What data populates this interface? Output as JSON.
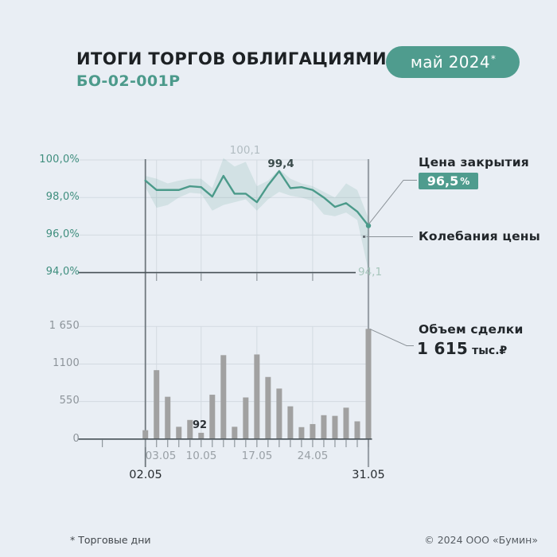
{
  "header": {
    "title": "ИТОГИ ТОРГОВ ОБЛИГАЦИЯМИ",
    "subtitle": "БО-02-001Р",
    "period_badge": "май 2024",
    "period_badge_footnote_mark": "*"
  },
  "colors": {
    "background": "#e9eef4",
    "accent_teal": "#4f9c8e",
    "price_line": "#4b9a8a",
    "band_fill": "rgba(79,156,141,0.15)",
    "bar_gray": "#a1a1a1",
    "dark_axis": "#465056",
    "grid_light": "#d3dae1"
  },
  "chart_data": [
    {
      "type": "line",
      "x": [
        "02.05",
        "03.05",
        "06.05",
        "07.05",
        "08.05",
        "10.05",
        "13.05",
        "14.05",
        "15.05",
        "16.05",
        "17.05",
        "20.05",
        "21.05",
        "22.05",
        "23.05",
        "24.05",
        "27.05",
        "28.05",
        "29.05",
        "30.05",
        "31.05"
      ],
      "series": [
        {
          "name": "Цена закрытия",
          "values": [
            98.9,
            98.4,
            98.4,
            98.4,
            98.6,
            98.55,
            98.05,
            99.15,
            98.2,
            98.2,
            97.75,
            98.65,
            99.4,
            98.5,
            98.55,
            98.4,
            98.0,
            97.5,
            97.7,
            97.25,
            96.5
          ]
        },
        {
          "name": "Колебания цены (максимум)",
          "values": [
            99.15,
            99.0,
            98.75,
            98.9,
            99.0,
            99.0,
            98.5,
            100.1,
            99.65,
            99.9,
            98.6,
            98.9,
            99.5,
            99.0,
            98.75,
            98.6,
            98.3,
            98.0,
            98.75,
            98.4,
            96.9
          ]
        },
        {
          "name": "Колебания цены (минимум)",
          "values": [
            98.55,
            97.45,
            97.6,
            98.0,
            98.25,
            98.2,
            97.3,
            97.6,
            97.75,
            97.9,
            97.3,
            97.9,
            98.3,
            98.1,
            98.0,
            97.8,
            97.1,
            97.0,
            97.2,
            96.8,
            94.1
          ]
        }
      ],
      "ylim": [
        94.0,
        100.0
      ],
      "y_tick_labels": [
        "100,0%",
        "98,0%",
        "96,0%",
        "94,0%"
      ],
      "x_tick_labels": [
        "03.05",
        "10.05",
        "17.05",
        "24.05"
      ],
      "annotations": {
        "band_max": "100,1",
        "line_peak": "99,4",
        "band_min": "94,1",
        "last_close": "96,5"
      }
    },
    {
      "type": "bar",
      "x": [
        "02.05",
        "03.05",
        "06.05",
        "07.05",
        "08.05",
        "10.05",
        "13.05",
        "14.05",
        "15.05",
        "16.05",
        "17.05",
        "20.05",
        "21.05",
        "22.05",
        "23.05",
        "24.05",
        "27.05",
        "28.05",
        "29.05",
        "30.05",
        "31.05"
      ],
      "values": [
        130,
        1010,
        620,
        180,
        280,
        92,
        650,
        1230,
        180,
        610,
        1240,
        910,
        740,
        480,
        175,
        220,
        350,
        340,
        460,
        260,
        1615
      ],
      "unit": "тыс.₽",
      "ylim": [
        0,
        1650
      ],
      "y_tick_labels": [
        "1 650",
        "1100",
        "550",
        "0"
      ],
      "x_tick_labels_minor": [
        "03.05",
        "10.05",
        "17.05",
        "24.05"
      ],
      "x_tick_labels_major": [
        "02.05",
        "31.05"
      ],
      "bar_value_labels": {
        "min_labeled_bar": "92",
        "last_bar": "1 615"
      }
    }
  ],
  "annotations_panel": {
    "closing_price_label": "Цена закрытия",
    "closing_price_value": "96,5",
    "closing_price_unit": "%",
    "fluctuation_label": "Колебания цены",
    "volume_label": "Объем сделки",
    "volume_value": "1 615",
    "volume_unit": "тыс.₽"
  },
  "footer": {
    "footnote": "* Торговые дни",
    "copyright": "© 2024 ООО «Бумин»"
  }
}
